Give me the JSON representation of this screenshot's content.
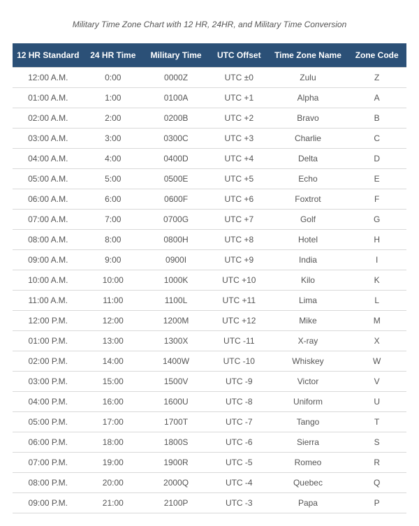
{
  "title": "Military Time Zone Chart with 12 HR, 24HR, and Military Time Conversion",
  "table": {
    "columns": [
      "12 HR Standard",
      "24 HR Time",
      "Military Time",
      "UTC Offset",
      "Time Zone Name",
      "Zone Code"
    ],
    "column_widths_pct": [
      18,
      15,
      17,
      15,
      20,
      15
    ],
    "header_bg": "#2b5077",
    "header_fg": "#ffffff",
    "row_border": "#d9d9d9",
    "cell_fg": "#555555",
    "rows": [
      [
        "12:00 A.M.",
        "0:00",
        "0000Z",
        "UTC ±0",
        "Zulu",
        "Z"
      ],
      [
        "01:00 A.M.",
        "1:00",
        "0100A",
        "UTC +1",
        "Alpha",
        "A"
      ],
      [
        "02:00 A.M.",
        "2:00",
        "0200B",
        "UTC +2",
        "Bravo",
        "B"
      ],
      [
        "03:00 A.M.",
        "3:00",
        "0300C",
        "UTC +3",
        "Charlie",
        "C"
      ],
      [
        "04:00 A.M.",
        "4:00",
        "0400D",
        "UTC +4",
        "Delta",
        "D"
      ],
      [
        "05:00 A.M.",
        "5:00",
        "0500E",
        "UTC +5",
        "Echo",
        "E"
      ],
      [
        "06:00 A.M.",
        "6:00",
        "0600F",
        "UTC +6",
        "Foxtrot",
        "F"
      ],
      [
        "07:00 A.M.",
        "7:00",
        "0700G",
        "UTC +7",
        "Golf",
        "G"
      ],
      [
        "08:00 A.M.",
        "8:00",
        "0800H",
        "UTC +8",
        "Hotel",
        "H"
      ],
      [
        "09:00 A.M.",
        "9:00",
        "0900I",
        "UTC +9",
        "India",
        "I"
      ],
      [
        "10:00 A.M.",
        "10:00",
        "1000K",
        "UTC +10",
        "Kilo",
        "K"
      ],
      [
        "11:00 A.M.",
        "11:00",
        "1100L",
        "UTC +11",
        "Lima",
        "L"
      ],
      [
        "12:00 P.M.",
        "12:00",
        "1200M",
        "UTC +12",
        "Mike",
        "M"
      ],
      [
        "01:00 P.M.",
        "13:00",
        "1300X",
        "UTC -11",
        "X-ray",
        "X"
      ],
      [
        "02:00 P.M.",
        "14:00",
        "1400W",
        "UTC -10",
        "Whiskey",
        "W"
      ],
      [
        "03:00 P.M.",
        "15:00",
        "1500V",
        "UTC -9",
        "Victor",
        "V"
      ],
      [
        "04:00 P.M.",
        "16:00",
        "1600U",
        "UTC -8",
        "Uniform",
        "U"
      ],
      [
        "05:00 P.M.",
        "17:00",
        "1700T",
        "UTC -7",
        "Tango",
        "T"
      ],
      [
        "06:00 P.M.",
        "18:00",
        "1800S",
        "UTC -6",
        "Sierra",
        "S"
      ],
      [
        "07:00 P.M.",
        "19:00",
        "1900R",
        "UTC -5",
        "Romeo",
        "R"
      ],
      [
        "08:00 P.M.",
        "20:00",
        "2000Q",
        "UTC -4",
        "Quebec",
        "Q"
      ],
      [
        "09:00 P.M.",
        "21:00",
        "2100P",
        "UTC -3",
        "Papa",
        "P"
      ]
    ]
  }
}
